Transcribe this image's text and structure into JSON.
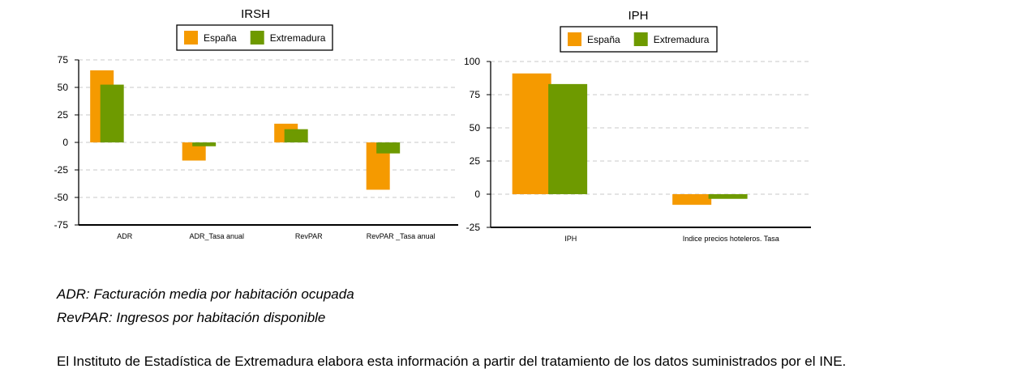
{
  "chart_data": [
    {
      "type": "bar",
      "title": "IRSH",
      "categories": [
        "ADR",
        "ADR_Tasa anual",
        "RevPAR",
        "RevPAR _Tasa anual"
      ],
      "series": [
        {
          "name": "España",
          "values": [
            65.5,
            -16.5,
            17,
            -43
          ],
          "color": "#f59a00"
        },
        {
          "name": "Extremadura",
          "values": [
            52.5,
            -3.5,
            12,
            -10
          ],
          "color": "#6e9a00"
        }
      ],
      "ylim": [
        -75,
        75
      ],
      "yticks": [
        75,
        50,
        25,
        0,
        -25,
        -50,
        -75
      ],
      "grid": true,
      "legend": "top-center"
    },
    {
      "type": "bar",
      "title": "IPH",
      "categories": [
        "IPH",
        "Indice precios hoteleros. Tasa"
      ],
      "series": [
        {
          "name": "España",
          "values": [
            91,
            -8
          ],
          "color": "#f59a00"
        },
        {
          "name": "Extremadura",
          "values": [
            83,
            -3.5
          ],
          "color": "#6e9a00"
        }
      ],
      "ylim": [
        -25,
        100
      ],
      "yticks": [
        100,
        75,
        50,
        25,
        0,
        -25
      ],
      "grid": true,
      "legend": "top-center"
    }
  ],
  "notes": {
    "adr": "ADR: Facturación media por habitación ocupada",
    "revpar": "RevPAR: Ingresos por habitación disponible",
    "source": "El Instituto de Estadística de Extremadura elabora esta información a partir del tratamiento de los datos suministrados por el INE."
  }
}
